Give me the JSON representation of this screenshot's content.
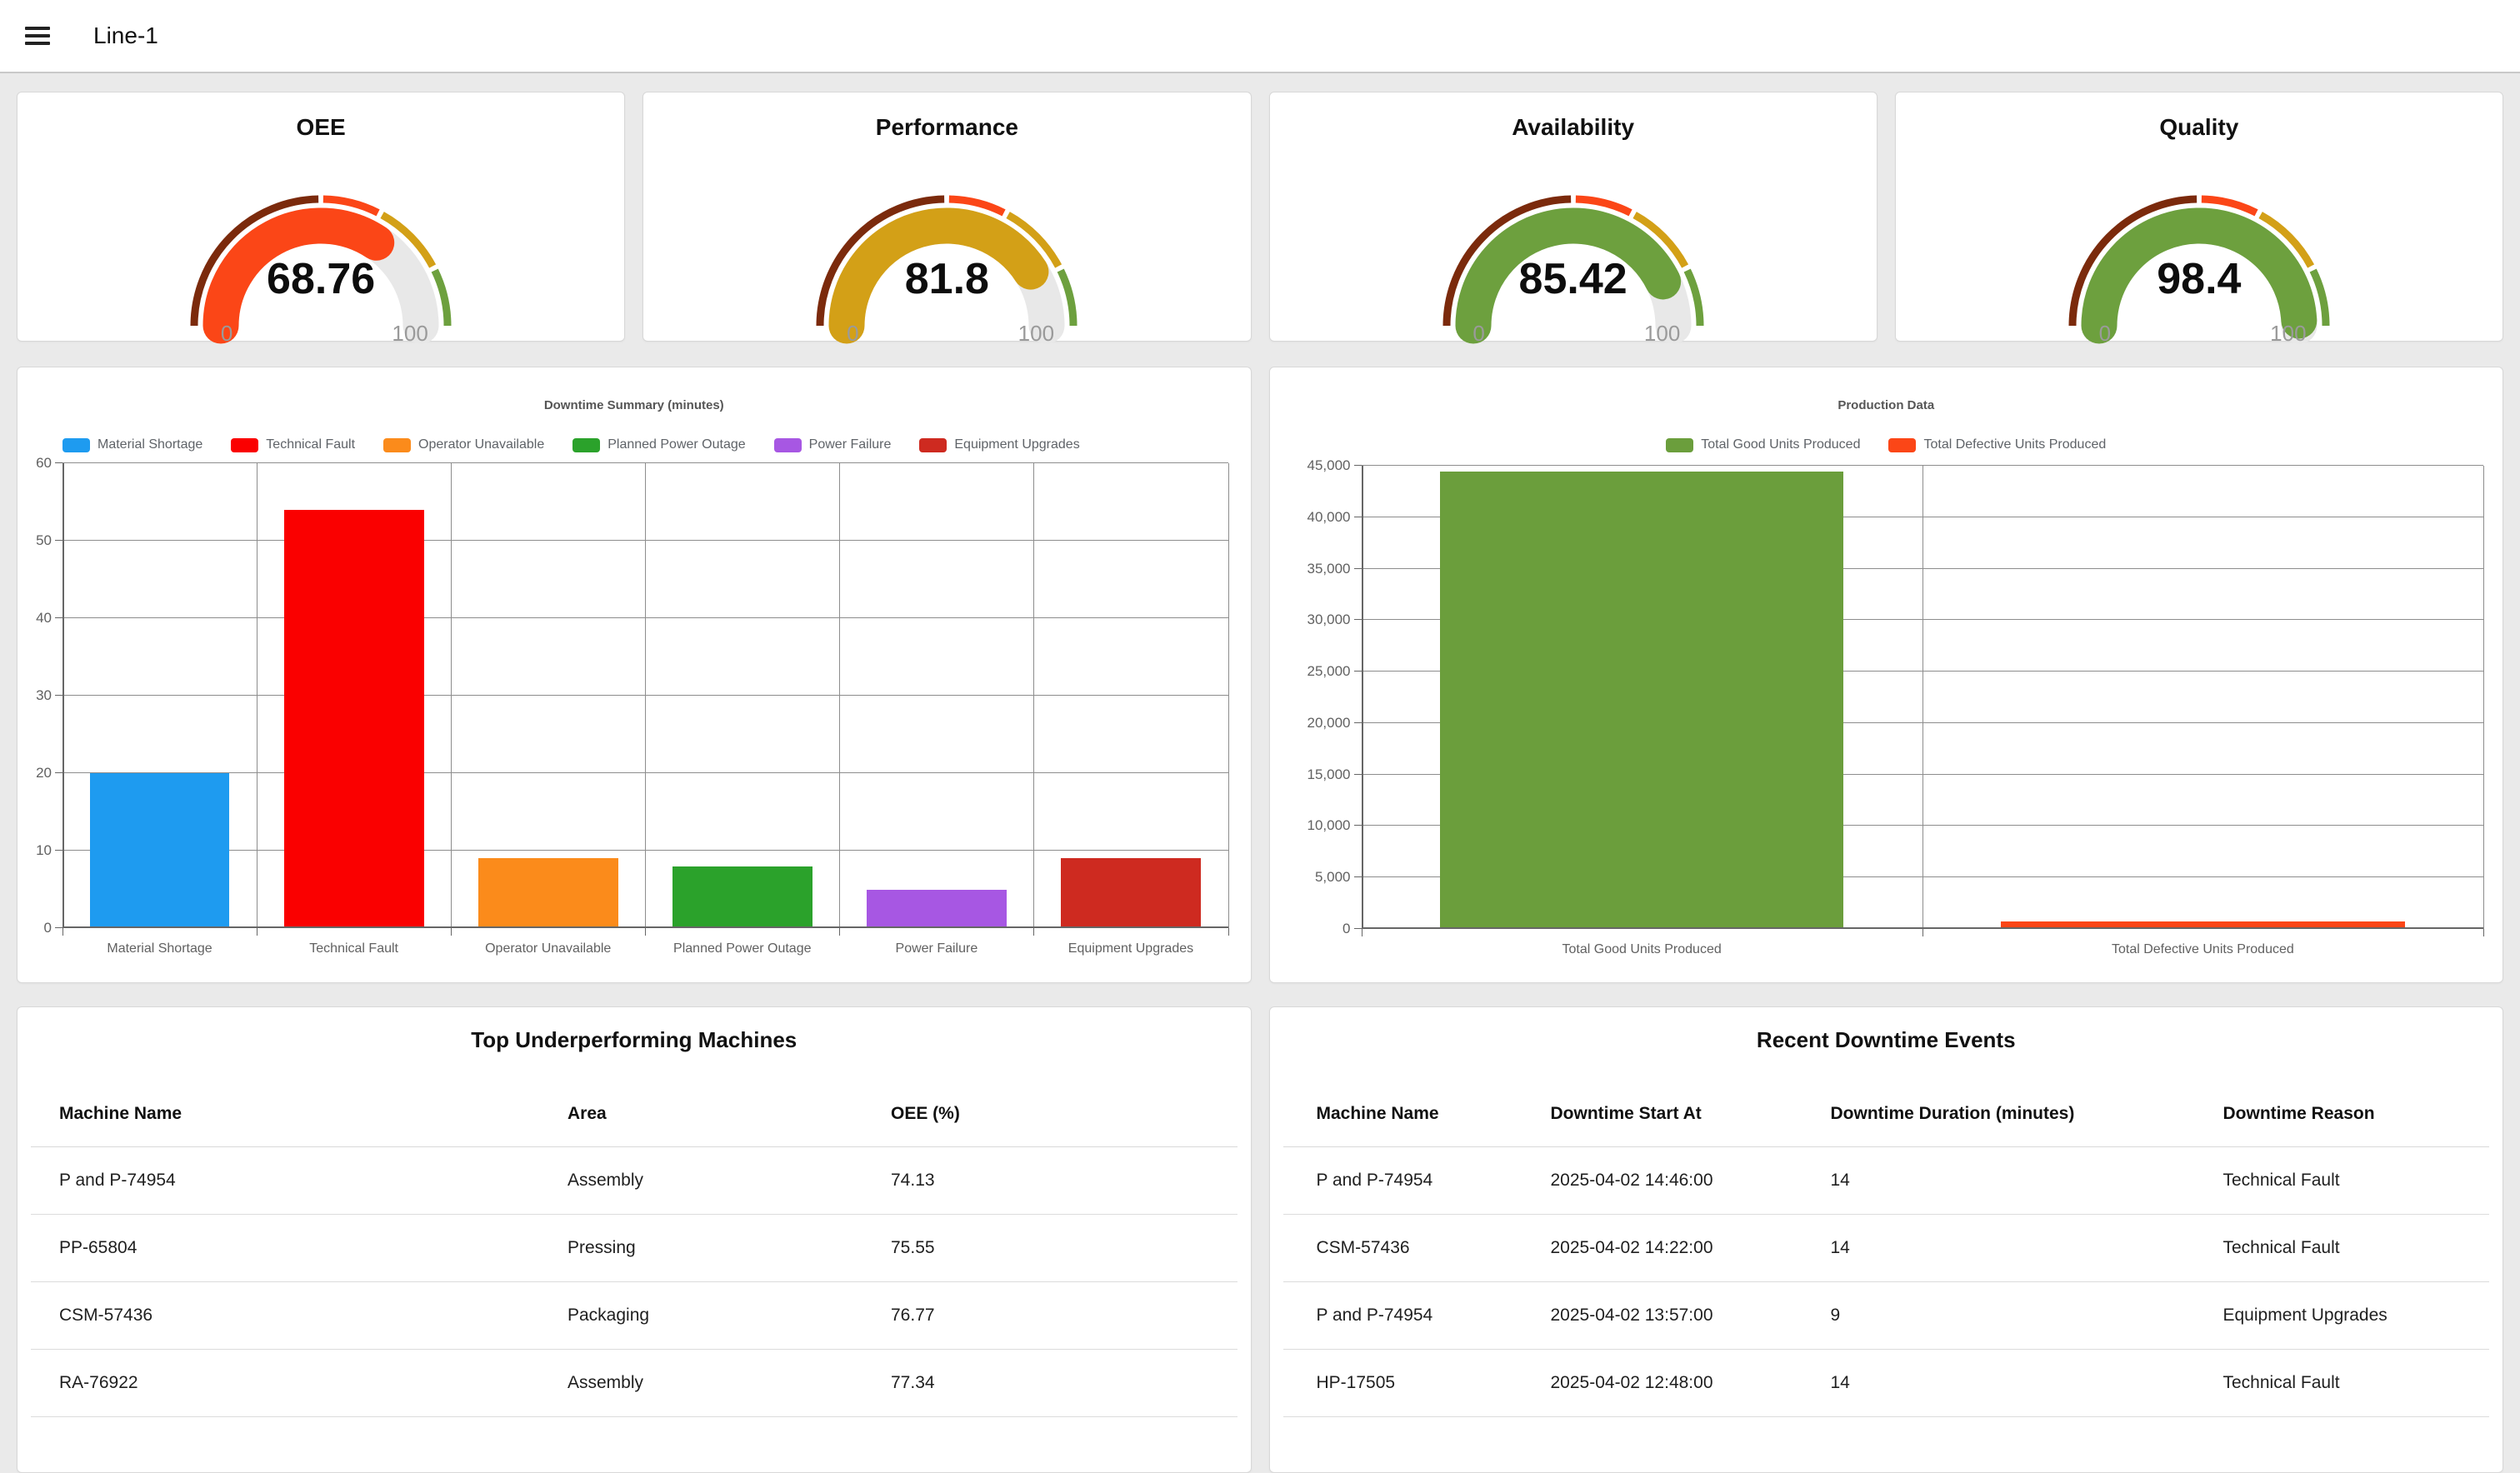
{
  "header": {
    "title": "Line-1",
    "menu_icon": "hamburger-menu"
  },
  "gauge_bands": [
    {
      "from": 0,
      "to": 0.5,
      "color": "#7b2a0c"
    },
    {
      "from": 0.5,
      "to": 0.655,
      "color": "#fb4617"
    },
    {
      "from": 0.655,
      "to": 0.85,
      "color": "#d3a017"
    },
    {
      "from": 0.85,
      "to": 1,
      "color": "#6da03e"
    }
  ],
  "gauge_track_color": "#e8e8e8",
  "chart_data": [
    {
      "type": "gauge",
      "title": "OEE",
      "value": "68.76",
      "numeric_value": 68.76,
      "min_label": "0",
      "max_label": "100",
      "fill_color": "#fb4617"
    },
    {
      "type": "gauge",
      "title": "Performance",
      "value": "81.8",
      "numeric_value": 81.8,
      "min_label": "0",
      "max_label": "100",
      "fill_color": "#d3a017"
    },
    {
      "type": "gauge",
      "title": "Availability",
      "value": "85.42",
      "numeric_value": 85.42,
      "min_label": "0",
      "max_label": "100",
      "fill_color": "#6da03e"
    },
    {
      "type": "gauge",
      "title": "Quality",
      "value": "98.4",
      "numeric_value": 98.4,
      "min_label": "0",
      "max_label": "100",
      "fill_color": "#6da03e"
    },
    {
      "type": "bar",
      "title": "Downtime Summary (minutes)",
      "categories": [
        "Material Shortage",
        "Technical Fault",
        "Operator Unavailable",
        "Planned Power Outage",
        "Power Failure",
        "Equipment Upgrades"
      ],
      "values": [
        20,
        54,
        9,
        8,
        5,
        9
      ],
      "colors": [
        "#1e9bf0",
        "#fa0000",
        "#fb8b1b",
        "#2ba22b",
        "#a757e3",
        "#ce2a20"
      ],
      "ylim": [
        0,
        60
      ],
      "yticks": [
        "0",
        "10",
        "20",
        "30",
        "40",
        "50",
        "60"
      ],
      "grid": "full",
      "legend_position": "top-left"
    },
    {
      "type": "bar",
      "title": "Production Data",
      "categories": [
        "Total Good Units Produced",
        "Total Defective Units Produced"
      ],
      "values": [
        44400,
        770
      ],
      "colors": [
        "#6b9e3c",
        "#fb4617"
      ],
      "ylim": [
        0,
        45000
      ],
      "yticks": [
        "0",
        "5,000",
        "10,000",
        "15,000",
        "20,000",
        "25,000",
        "30,000",
        "35,000",
        "40,000",
        "45,000"
      ],
      "grid": "full",
      "legend_position": "top-center"
    }
  ],
  "tables": [
    {
      "title": "Top Underperforming Machines",
      "columns": [
        "Machine Name",
        "Area",
        "OEE (%)"
      ],
      "rows": [
        [
          "P and P-74954",
          "Assembly",
          "74.13"
        ],
        [
          "PP-65804",
          "Pressing",
          "75.55"
        ],
        [
          "CSM-57436",
          "Packaging",
          "76.77"
        ],
        [
          "RA-76922",
          "Assembly",
          "77.34"
        ]
      ]
    },
    {
      "title": "Recent Downtime Events",
      "columns": [
        "Machine Name",
        "Downtime Start At",
        "Downtime Duration (minutes)",
        "Downtime Reason"
      ],
      "rows": [
        [
          "P and P-74954",
          "2025-04-02 14:46:00",
          "14",
          "Technical Fault"
        ],
        [
          "CSM-57436",
          "2025-04-02 14:22:00",
          "14",
          "Technical Fault"
        ],
        [
          "P and P-74954",
          "2025-04-02 13:57:00",
          "9",
          "Equipment Upgrades"
        ],
        [
          "HP-17505",
          "2025-04-02 12:48:00",
          "14",
          "Technical Fault"
        ]
      ]
    }
  ]
}
